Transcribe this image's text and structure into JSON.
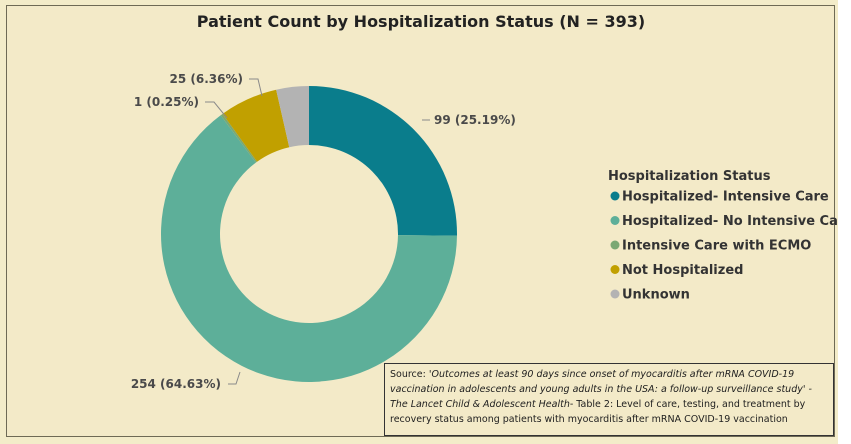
{
  "chart_data": {
    "type": "pie",
    "variant": "donut",
    "title": "Patient Count by Hospitalization Status (N = 393)",
    "legend_title": "Hospitalization Status",
    "legend_position": "right",
    "slices": [
      {
        "label": "Hospitalized- Intensive Care",
        "value": 99,
        "percent_text": "25.19%",
        "data_label": "99 (25.19%)",
        "color": "#0a7d8c"
      },
      {
        "label": "Hospitalized- No Intensive Care",
        "value": 254,
        "percent_text": "64.63%",
        "data_label": "254 (64.63%)",
        "color": "#5daf99"
      },
      {
        "label": "Intensive Care with ECMO",
        "value": 1,
        "percent_text": "0.25%",
        "data_label": "1 (0.25%)",
        "color": "#7aa873"
      },
      {
        "label": "Not Hospitalized",
        "value": 25,
        "percent_text": "6.36%",
        "data_label": "25 (6.36%)",
        "color": "#c1a000"
      },
      {
        "label": "Unknown",
        "value": 14,
        "percent_text": "",
        "data_label": "",
        "color": "#b3b3b3"
      }
    ]
  },
  "source": {
    "prefix": "Source:  ",
    "citation": "'Outcomes at least 90 days since onset of myocarditis after mRNA COVID-19 vaccination in adolescents and young adults in the USA: a follow-up surveillance study' - The Lancet Child & Adolescent Health",
    "suffix": "- Table 2: Level of care, testing, and treatment by recovery status among patients with myocarditis after mRNA COVID-19 vaccination"
  }
}
